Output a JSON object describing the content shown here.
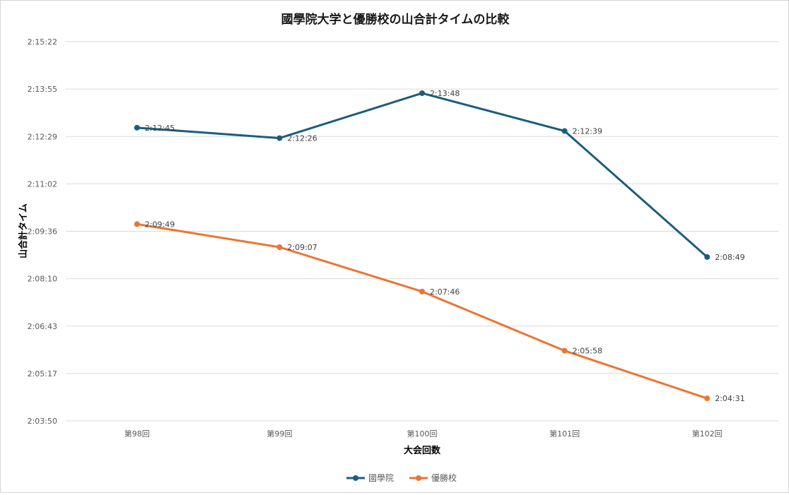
{
  "chart_data": {
    "type": "line",
    "title": "國學院大学と優勝校の山合計タイムの比較",
    "xlabel": "大会回数",
    "ylabel": "山合計タイム",
    "categories": [
      "第98回",
      "第99回",
      "第100回",
      "第101回",
      "第102回"
    ],
    "y_ticks": [
      "2:15:22",
      "2:13:55",
      "2:12:29",
      "2:11:02",
      "2:09:36",
      "2:08:10",
      "2:06:43",
      "2:05:17",
      "2:03:50"
    ],
    "ylim_seconds": [
      7430,
      8122
    ],
    "series": [
      {
        "name": "國學院",
        "color": "#1b5d7e",
        "values": [
          "2:12:45",
          "2:12:26",
          "2:13:48",
          "2:12:39",
          "2:08:49"
        ]
      },
      {
        "name": "優勝校",
        "color": "#ec7432",
        "values": [
          "2:09:49",
          "2:09:07",
          "2:07:46",
          "2:05:58",
          "2:04:31"
        ]
      }
    ],
    "legend_position": "bottom"
  }
}
